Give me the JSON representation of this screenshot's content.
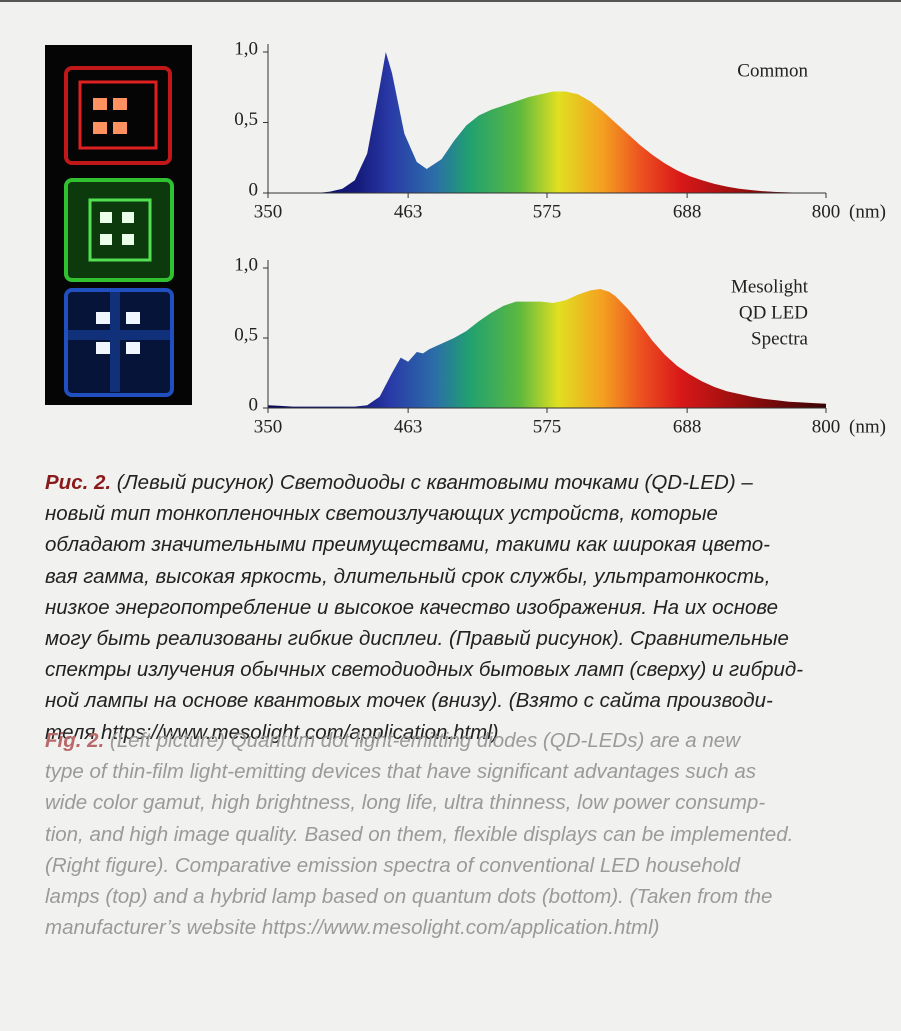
{
  "chart_data": [
    {
      "type": "area",
      "x": [
        350,
        360,
        370,
        380,
        390,
        400,
        410,
        420,
        430,
        440,
        445,
        450,
        460,
        470,
        478,
        490,
        500,
        510,
        520,
        530,
        540,
        550,
        560,
        570,
        580,
        590,
        600,
        610,
        620,
        630,
        640,
        650,
        660,
        670,
        680,
        690,
        700,
        710,
        720,
        730,
        740,
        750,
        760,
        770,
        780,
        790,
        800
      ],
      "series": [
        {
          "label_lines": [
            "Common"
          ],
          "values": [
            0,
            0,
            0,
            0,
            0,
            0.01,
            0.03,
            0.09,
            0.28,
            0.75,
            1.0,
            0.85,
            0.42,
            0.22,
            0.17,
            0.24,
            0.37,
            0.48,
            0.55,
            0.59,
            0.62,
            0.65,
            0.68,
            0.7,
            0.72,
            0.72,
            0.7,
            0.65,
            0.58,
            0.5,
            0.42,
            0.34,
            0.27,
            0.21,
            0.16,
            0.12,
            0.09,
            0.065,
            0.045,
            0.03,
            0.02,
            0.012,
            0.007,
            0.004,
            0.002,
            0.001,
            0
          ]
        }
      ],
      "x_label": "(nm)",
      "xlim": [
        350,
        800
      ],
      "xticks": [
        350,
        463,
        575,
        688,
        800
      ],
      "ylim": [
        0,
        1
      ],
      "yticks": [
        0,
        {
          "value": 0.5,
          "label": "0,5"
        },
        {
          "value": 1,
          "label": "1,0"
        }
      ]
    },
    {
      "type": "area",
      "x": [
        350,
        360,
        370,
        380,
        390,
        400,
        410,
        420,
        430,
        440,
        450,
        457,
        463,
        470,
        475,
        480,
        490,
        500,
        510,
        520,
        530,
        540,
        550,
        560,
        570,
        580,
        590,
        600,
        610,
        618,
        625,
        630,
        640,
        650,
        660,
        670,
        680,
        690,
        700,
        710,
        720,
        730,
        740,
        750,
        760,
        770,
        780,
        790,
        800
      ],
      "series": [
        {
          "label_lines": [
            "Mesolight",
            "QD LED",
            "Spectra"
          ],
          "values": [
            0.02,
            0.015,
            0.01,
            0.01,
            0.01,
            0.01,
            0.01,
            0.01,
            0.02,
            0.08,
            0.25,
            0.36,
            0.33,
            0.4,
            0.39,
            0.42,
            0.46,
            0.5,
            0.55,
            0.62,
            0.68,
            0.73,
            0.76,
            0.76,
            0.76,
            0.75,
            0.77,
            0.81,
            0.84,
            0.85,
            0.83,
            0.8,
            0.71,
            0.6,
            0.48,
            0.38,
            0.3,
            0.24,
            0.19,
            0.15,
            0.12,
            0.1,
            0.08,
            0.065,
            0.055,
            0.045,
            0.04,
            0.035,
            0.03
          ]
        }
      ],
      "x_label": "(nm)",
      "xlim": [
        350,
        800
      ],
      "xticks": [
        350,
        463,
        575,
        688,
        800
      ],
      "ylim": [
        0,
        1
      ],
      "yticks": [
        0,
        {
          "value": 0.5,
          "label": "0,5"
        },
        {
          "value": 1,
          "label": "1,0"
        }
      ]
    }
  ],
  "caption_ru": {
    "label": "Рис. 2.",
    "lines": [
      " (Левый рисунок) Светодиоды с квантовыми точками (QD-LED) –",
      "новый тип тонкопленочных светоизлучающих устройств, которые",
      "обладают значительными преимуществами, такими как широкая цвето-",
      "вая гамма, высокая яркость, длительный срок службы, ультратонкость,",
      "низкое энергопотребление и высокое качество изображения. На их основе",
      "могу быть реализованы гибкие дисплеи. (Правый рисунок). Сравнительные",
      "спектры излучения обычных светодиодных бытовых ламп (сверху) и гибрид-",
      "ной лампы на основе квантовых точек (внизу). (Взято с сайта производи-",
      "теля https://www.mesolight.com/application.html)"
    ]
  },
  "caption_en": {
    "label": "Fig. 2.",
    "lines": [
      " (Left picture) Quantum dot light-emitting diodes (QD-LEDs) are a new",
      "type of thin-film light-emitting devices that have significant advantages such as",
      "wide color gamut, high brightness, long life, ultra thinness, low power consump-",
      "tion, and high image quality. Based on them, flexible displays can be implemented.",
      "(Right figure). Comparative emission spectra of conventional LED household",
      "lamps (top) and a hybrid lamp based on quantum dots (bottom). (Taken from the",
      "manufacturer’s website https://www.mesolight.com/application.html)"
    ]
  }
}
